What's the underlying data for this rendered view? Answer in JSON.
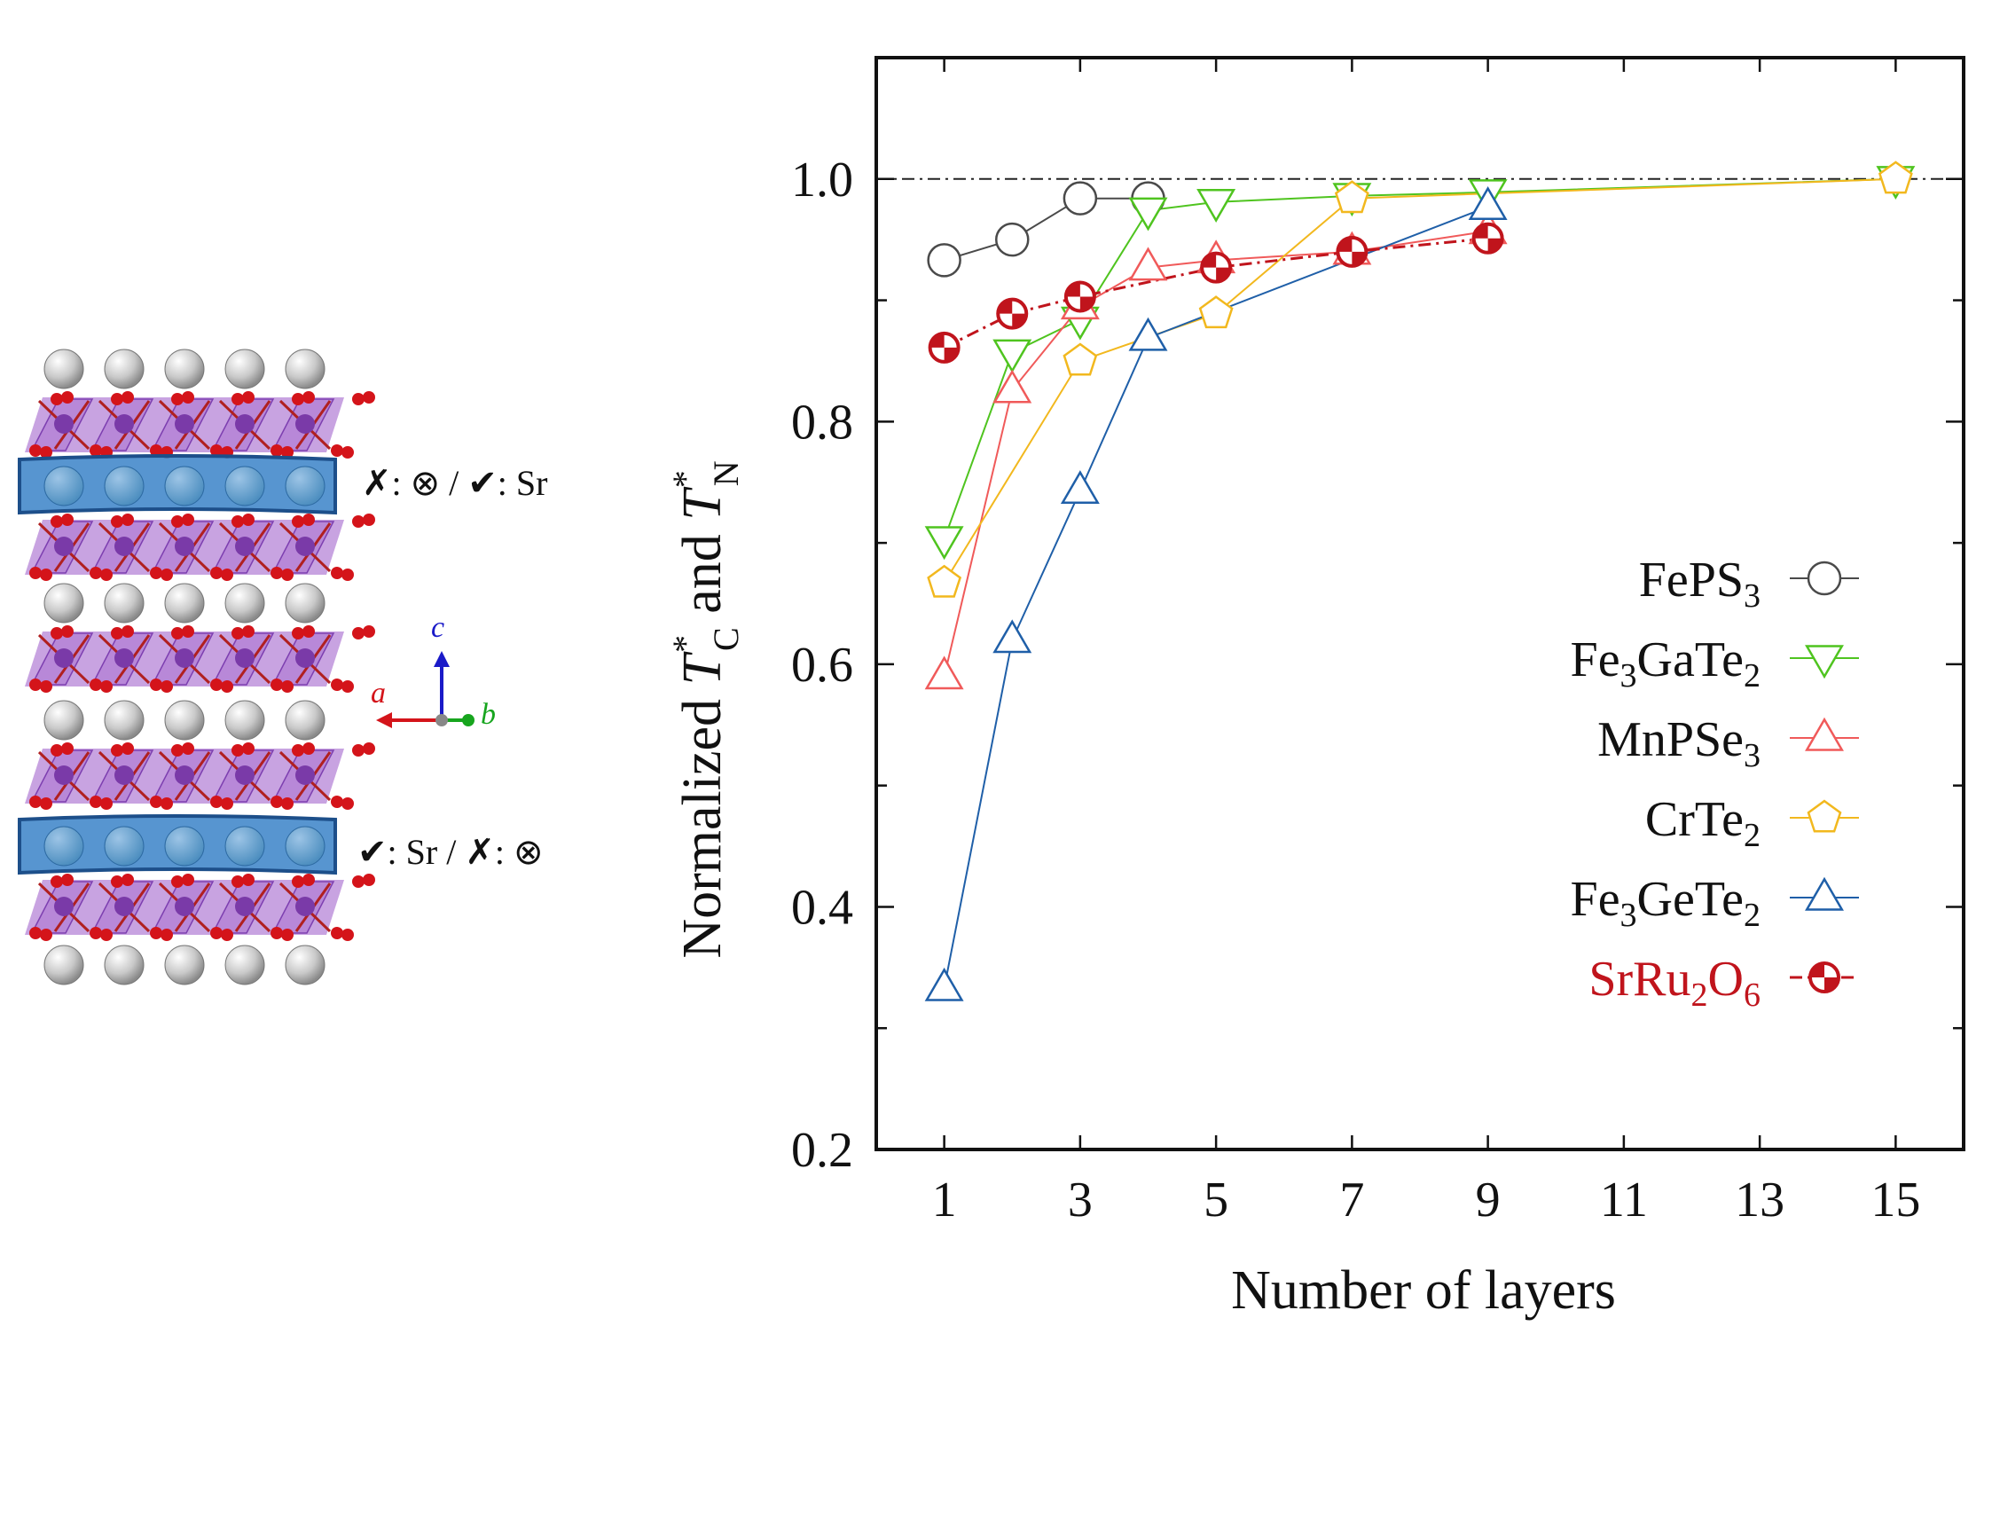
{
  "structure_panel": {
    "annotation_top": {
      "cross": "✗",
      "sep1": ": ",
      "otimes": "⊗",
      "slash": " / ",
      "check": "✔",
      "sep2": ": ",
      "label": "Sr"
    },
    "annotation_bottom": {
      "check": "✔",
      "sep1": ": ",
      "label": "Sr",
      "slash": " / ",
      "cross": "✗",
      "sep2": ": ",
      "otimes": "⊗"
    },
    "axes_labels": {
      "a": "a",
      "b": "b",
      "c": "c"
    },
    "colors": {
      "sr_atom": "#c9c9c9",
      "sr_layer_fill": "#3a83c8",
      "sr_layer_atom": "#4e8fc0",
      "octahedra": "#9b57c9",
      "ru_atom": "#7a3aa8",
      "o_atom": "#d4141a",
      "axis_a": "#d4141a",
      "axis_b": "#17a51e",
      "axis_c": "#1a1ac8"
    }
  },
  "chart_data": {
    "type": "line",
    "xlabel": "Number of layers",
    "ylabel": {
      "prefix": "Normalized ",
      "t1": "T",
      "sup1": "*",
      "sub1": "C",
      "middle": " and ",
      "t2": "T",
      "sup2": "*",
      "sub2": "N"
    },
    "xlim": [
      0,
      16
    ],
    "ylim": [
      0.2,
      1.1
    ],
    "xticks": [
      1,
      3,
      5,
      7,
      9,
      11,
      13,
      15
    ],
    "xticklabels": [
      "1",
      "3",
      "5",
      "7",
      "9",
      "11",
      "13",
      "15"
    ],
    "yticks": [
      0.2,
      0.4,
      0.6,
      0.8,
      1.0
    ],
    "yticklabels": [
      "0.2",
      "0.4",
      "0.6",
      "0.8",
      "1.0"
    ],
    "reference_line": 1.0,
    "legend_position": "right",
    "series": [
      {
        "name": "FePS3",
        "name_base": "FePS",
        "name_sub": "3",
        "name_tail": "",
        "name_sub2": "",
        "marker": "circle",
        "color": "#4a4a4a",
        "dash": "solid",
        "x": [
          1,
          2,
          3,
          4
        ],
        "y": [
          0.933,
          0.95,
          0.984,
          0.984
        ]
      },
      {
        "name": "Fe3GaTe2",
        "name_base": "Fe",
        "name_sub": "3",
        "name_tail": "GaTe",
        "name_sub2": "2",
        "marker": "triangle-down",
        "color": "#4fc41f",
        "dash": "solid",
        "x": [
          1,
          2,
          3,
          4,
          5,
          7,
          9,
          15
        ],
        "y": [
          0.703,
          0.857,
          0.884,
          0.974,
          0.981,
          0.986,
          0.989,
          1.0
        ]
      },
      {
        "name": "MnPSe3",
        "name_base": "MnPSe",
        "name_sub": "3",
        "name_tail": "",
        "name_sub2": "",
        "marker": "triangle-up",
        "color": "#f05a5a",
        "dash": "solid",
        "x": [
          1,
          2,
          3,
          4,
          5,
          7,
          9
        ],
        "y": [
          0.59,
          0.826,
          0.895,
          0.927,
          0.933,
          0.94,
          0.957
        ]
      },
      {
        "name": "CrTe2",
        "name_base": "CrTe",
        "name_sub": "2",
        "name_tail": "",
        "name_sub2": "",
        "marker": "pentagon",
        "color": "#f2b81e",
        "dash": "solid",
        "x": [
          1,
          3,
          5,
          7,
          15
        ],
        "y": [
          0.667,
          0.85,
          0.889,
          0.984,
          1.0
        ]
      },
      {
        "name": "Fe3GeTe2",
        "name_base": "Fe",
        "name_sub": "3",
        "name_tail": "GeTe",
        "name_sub2": "2",
        "marker": "triangle-up",
        "color": "#1f5fa8",
        "dash": "solid",
        "x": [
          1,
          2,
          3,
          4,
          9
        ],
        "y": [
          0.333,
          0.62,
          0.743,
          0.869,
          0.977
        ]
      },
      {
        "name": "SrRu2O6",
        "name_base": "SrRu",
        "name_sub": "2",
        "name_tail": "O",
        "name_sub2": "6",
        "marker": "half-circle",
        "color": "#c0141c",
        "dash": "dashdot",
        "x": [
          1,
          2,
          3,
          5,
          7,
          9
        ],
        "y": [
          0.861,
          0.889,
          0.903,
          0.927,
          0.94,
          0.951
        ]
      }
    ]
  }
}
